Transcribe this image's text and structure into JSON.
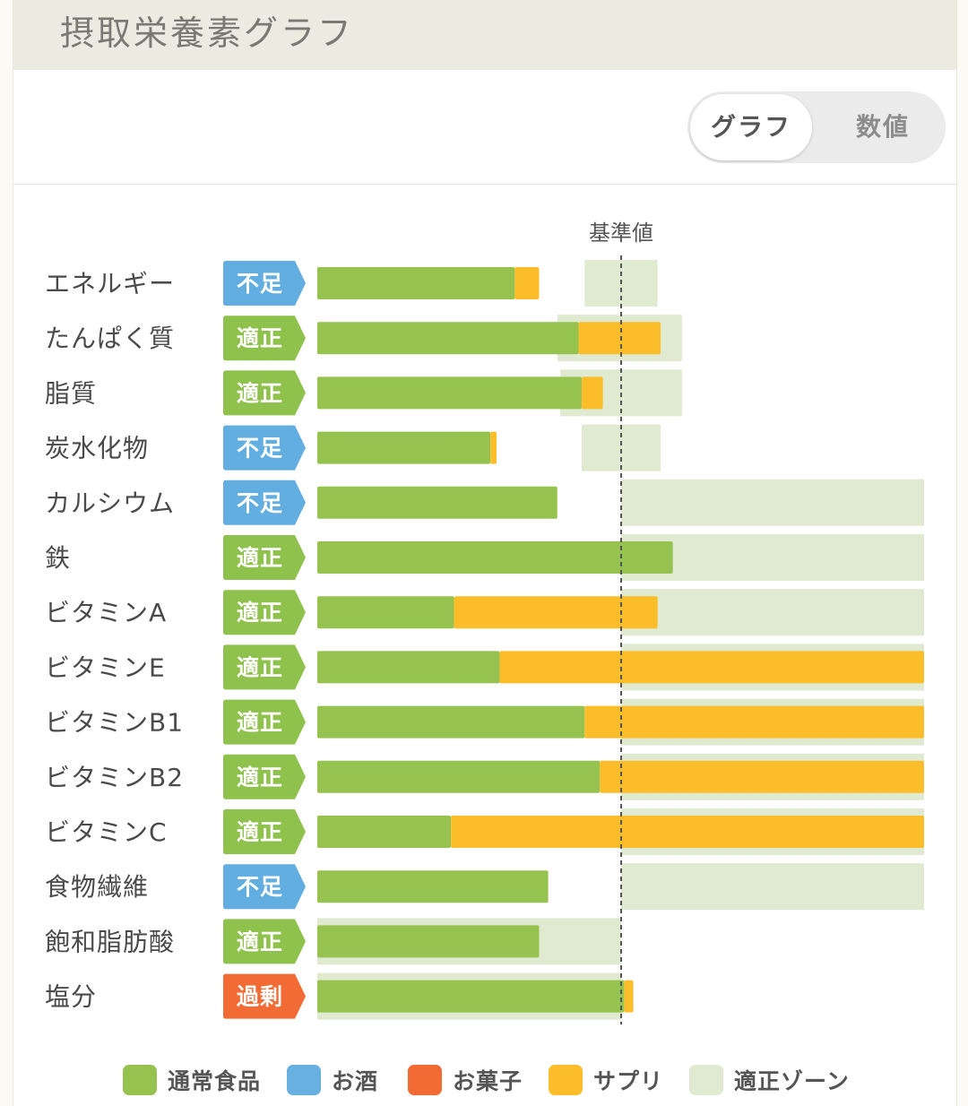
{
  "page": {
    "title": "摂取栄養素グラフ",
    "toggle": {
      "graph_label": "グラフ",
      "value_label": "数値",
      "selected": "グラフ"
    }
  },
  "colors": {
    "通常食品": "#96c250",
    "お酒": "#67b0e0",
    "お菓子": "#f26b35",
    "サプリ": "#fbbd2a",
    "適正ゾーン": "#dfead0",
    "不足": "#62aee0",
    "適正": "#8fc14d",
    "過剰": "#f26b35"
  },
  "chart_data": {
    "type": "bar",
    "orientation": "horizontal",
    "stacked": true,
    "reference_label": "基準値",
    "reference_value": 100,
    "unit": "基準値に対する割合 (%)",
    "xlim": [
      0,
      200
    ],
    "categories": [
      "エネルギー",
      "たんぱく質",
      "脂質",
      "炭水化物",
      "カルシウム",
      "鉄",
      "ビタミンA",
      "ビタミンE",
      "ビタミンB1",
      "ビタミンB2",
      "ビタミンC",
      "食物繊維",
      "飽和脂肪酸",
      "塩分"
    ],
    "status": [
      "不足",
      "適正",
      "適正",
      "不足",
      "不足",
      "適正",
      "適正",
      "適正",
      "適正",
      "適正",
      "適正",
      "不足",
      "適正",
      "過剰"
    ],
    "series": [
      {
        "name": "通常食品",
        "values": [
          65,
          86,
          87,
          57,
          79,
          117,
          45,
          60,
          88,
          93,
          44,
          76,
          73,
          101
        ]
      },
      {
        "name": "お酒",
        "values": [
          0,
          0,
          0,
          0,
          0,
          0,
          0,
          0,
          0,
          0,
          0,
          0,
          0,
          0
        ]
      },
      {
        "name": "お菓子",
        "values": [
          0,
          0,
          0,
          0,
          0,
          0,
          0,
          0,
          0,
          0,
          0,
          0,
          0,
          0
        ]
      },
      {
        "name": "サプリ",
        "values": [
          8,
          27,
          7,
          2,
          0,
          0,
          67,
          140,
          112,
          107,
          156,
          0,
          0,
          3
        ]
      }
    ],
    "optimal_zone": [
      [
        88,
        112
      ],
      [
        79,
        120
      ],
      [
        80,
        120
      ],
      [
        87,
        113
      ],
      [
        100,
        200
      ],
      [
        100,
        200
      ],
      [
        100,
        200
      ],
      [
        100,
        200
      ],
      [
        100,
        200
      ],
      [
        100,
        200
      ],
      [
        100,
        200
      ],
      [
        100,
        200
      ],
      [
        0,
        100
      ],
      [
        0,
        100
      ]
    ],
    "legend": [
      "通常食品",
      "お酒",
      "お菓子",
      "サプリ",
      "適正ゾーン"
    ],
    "legend_position": "bottom"
  }
}
